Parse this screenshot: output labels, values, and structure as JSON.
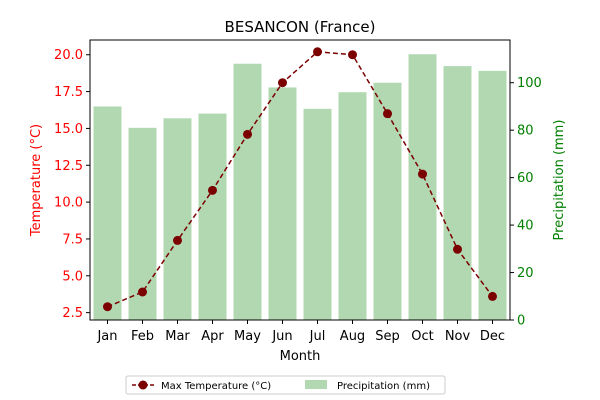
{
  "chart_data": {
    "type": "bar+line",
    "title": "BESANCON (France)",
    "xlabel": "Month",
    "ylabel_left": "Temperature (°C)",
    "ylabel_right": "Precipitation (mm)",
    "categories": [
      "Jan",
      "Feb",
      "Mar",
      "Apr",
      "May",
      "Jun",
      "Jul",
      "Aug",
      "Sep",
      "Oct",
      "Nov",
      "Dec"
    ],
    "ylim_left": [
      2.0,
      21.0
    ],
    "ylim_right": [
      0,
      118
    ],
    "left_ticks": [
      "2.5",
      "5.0",
      "7.5",
      "10.0",
      "12.5",
      "15.0",
      "17.5",
      "20.0"
    ],
    "right_ticks": [
      "0",
      "20",
      "40",
      "60",
      "80",
      "100"
    ],
    "series": [
      {
        "name": "Max Temperature (°C)",
        "kind": "line",
        "axis": "left",
        "color": "#7b0000",
        "values": [
          2.9,
          3.9,
          7.4,
          10.8,
          14.6,
          18.1,
          20.2,
          20.0,
          16.0,
          11.9,
          6.8,
          3.6
        ]
      },
      {
        "name": "Precipitation (mm)",
        "kind": "bar",
        "axis": "right",
        "color": "#b2d8b2",
        "values": [
          90,
          81,
          85,
          87,
          108,
          98,
          89,
          96,
          100,
          112,
          107,
          105
        ]
      }
    ],
    "legend_position": "bottom-center",
    "left_axis_color": "#ff0000",
    "right_axis_color": "#008000"
  }
}
